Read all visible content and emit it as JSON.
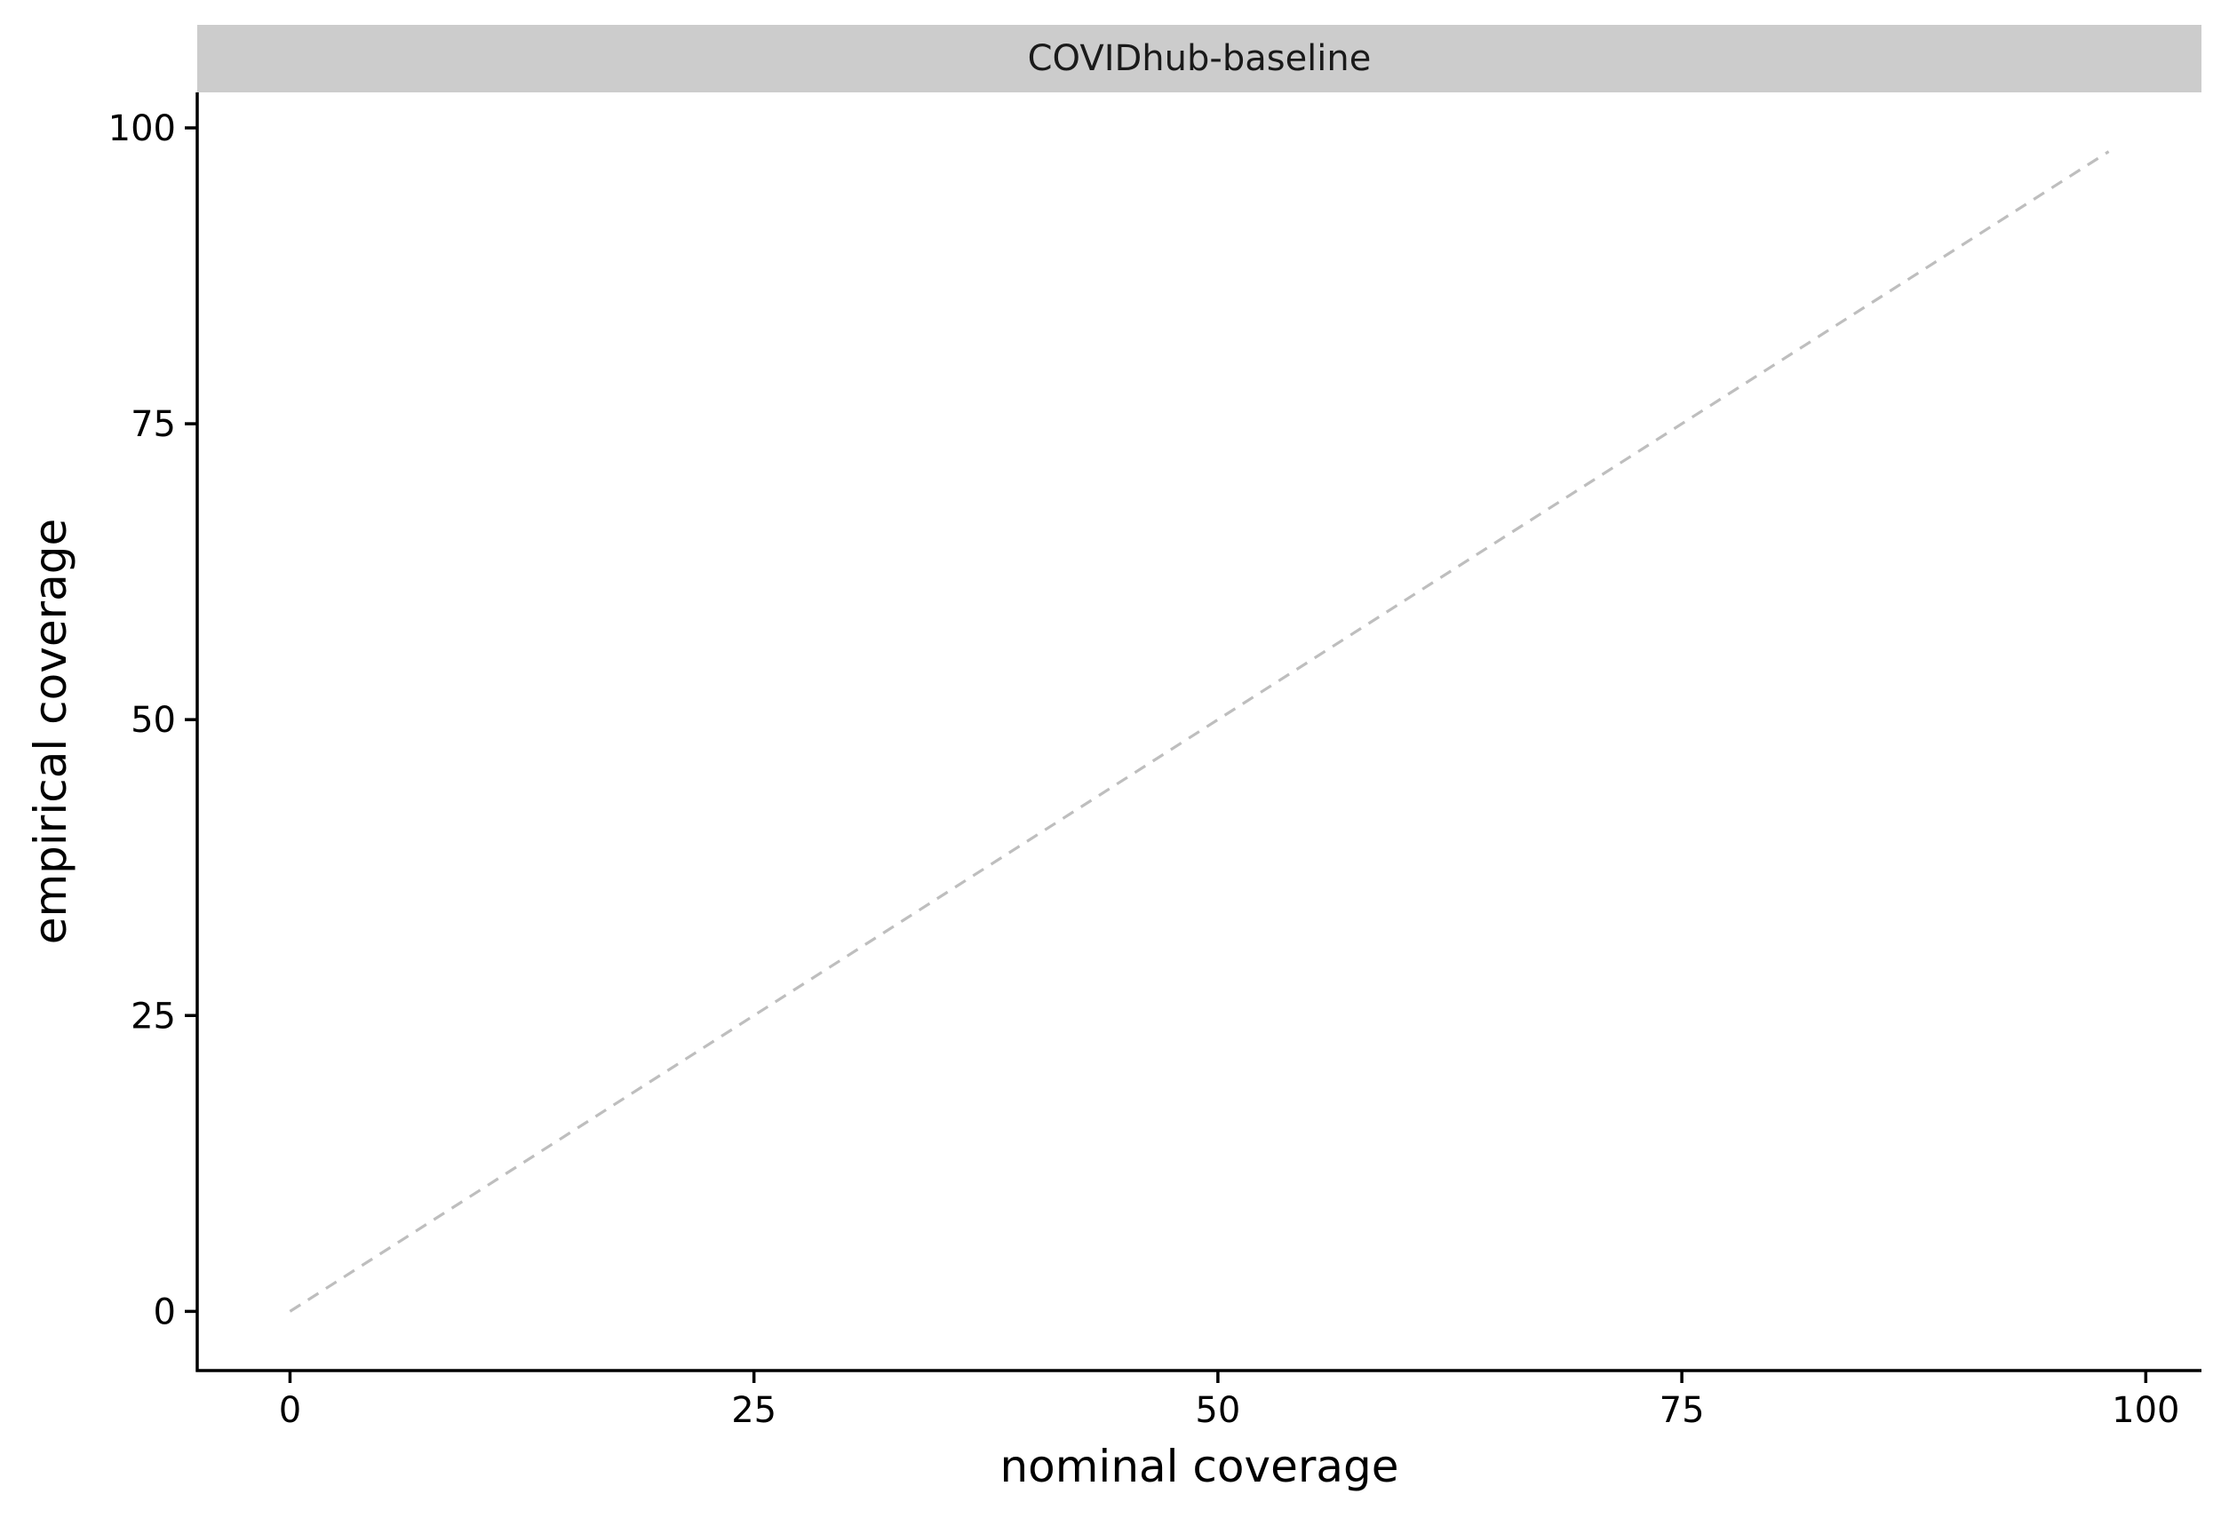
{
  "chart_data": {
    "type": "line",
    "panel_title": "COVIDhub-baseline",
    "xlabel": "nominal coverage",
    "ylabel": "empirical coverage",
    "xlim": [
      -5,
      103
    ],
    "ylim": [
      -5,
      103
    ],
    "x_ticks": [
      0,
      25,
      50,
      75,
      100
    ],
    "y_ticks": [
      0,
      25,
      50,
      75,
      100
    ],
    "grid": false,
    "series": [
      {
        "style": "dashed",
        "color": "#bebebe",
        "x": [
          0,
          98
        ],
        "y": [
          0,
          98
        ]
      }
    ],
    "colors": {
      "strip_background": "#cccccc",
      "axis": "#000000",
      "reference_line": "#bebebe"
    }
  }
}
